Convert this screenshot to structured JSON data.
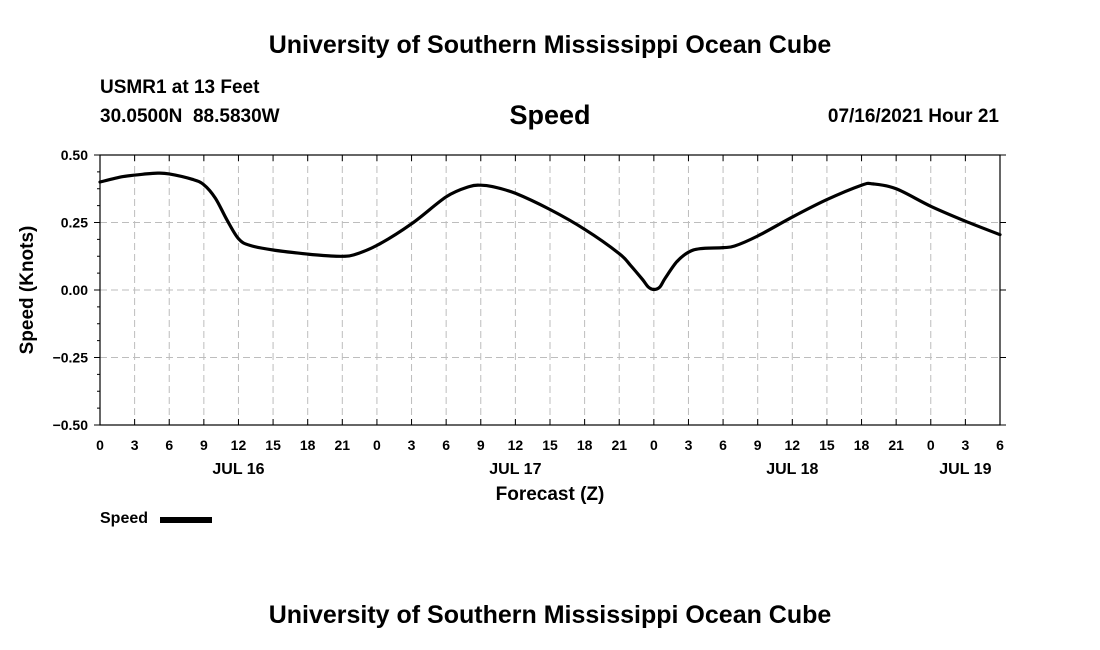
{
  "header": {
    "title": "University of Southern Mississippi Ocean Cube",
    "station": "USMR1 at 13 Feet",
    "coords": "30.0500N  88.5830W",
    "variable": "Speed",
    "timestamp": "07/16/2021 Hour 21"
  },
  "footer": {
    "title": "University of Southern Mississippi Ocean Cube"
  },
  "legend": {
    "label": "Speed"
  },
  "chart_data": {
    "type": "line",
    "title": "Speed",
    "xlabel": "Forecast (Z)",
    "ylabel": "Speed (Knots)",
    "x_unit": "hours since 00Z JUL 16",
    "xlim": [
      0,
      78
    ],
    "ylim": [
      -0.5,
      0.5
    ],
    "grid": true,
    "legend_position": "bottom-left",
    "y_ticks": [
      {
        "value": -0.5,
        "label": "−0.50"
      },
      {
        "value": -0.25,
        "label": "−0.25"
      },
      {
        "value": 0,
        "label": "0.00"
      },
      {
        "value": 0.25,
        "label": "0.25"
      },
      {
        "value": 0.5,
        "label": "0.50"
      }
    ],
    "x_ticks": [
      {
        "value": 0,
        "label": "0"
      },
      {
        "value": 3,
        "label": "3"
      },
      {
        "value": 6,
        "label": "6"
      },
      {
        "value": 9,
        "label": "9"
      },
      {
        "value": 12,
        "label": "12"
      },
      {
        "value": 15,
        "label": "15"
      },
      {
        "value": 18,
        "label": "18"
      },
      {
        "value": 21,
        "label": "21"
      },
      {
        "value": 24,
        "label": "0"
      },
      {
        "value": 27,
        "label": "3"
      },
      {
        "value": 30,
        "label": "6"
      },
      {
        "value": 33,
        "label": "9"
      },
      {
        "value": 36,
        "label": "12"
      },
      {
        "value": 39,
        "label": "15"
      },
      {
        "value": 42,
        "label": "18"
      },
      {
        "value": 45,
        "label": "21"
      },
      {
        "value": 48,
        "label": "0"
      },
      {
        "value": 51,
        "label": "3"
      },
      {
        "value": 54,
        "label": "6"
      },
      {
        "value": 57,
        "label": "9"
      },
      {
        "value": 60,
        "label": "12"
      },
      {
        "value": 63,
        "label": "15"
      },
      {
        "value": 66,
        "label": "18"
      },
      {
        "value": 69,
        "label": "21"
      },
      {
        "value": 72,
        "label": "0"
      },
      {
        "value": 75,
        "label": "3"
      },
      {
        "value": 78,
        "label": "6"
      }
    ],
    "date_labels": [
      {
        "value": 12,
        "label": "JUL 16"
      },
      {
        "value": 36,
        "label": "JUL 17"
      },
      {
        "value": 60,
        "label": "JUL 18"
      },
      {
        "value": 75,
        "label": "JUL 19"
      }
    ],
    "series": [
      {
        "name": "Speed",
        "color": "#000000",
        "x": [
          0,
          2,
          4,
          5,
          6,
          8,
          9,
          10,
          11,
          12,
          13,
          15,
          18,
          20,
          21,
          22,
          24,
          27,
          30,
          32,
          33,
          34,
          36,
          39,
          42,
          45,
          46,
          47,
          47.5,
          48,
          48.5,
          49,
          50,
          51,
          52,
          54,
          55,
          57,
          60,
          63,
          66,
          67,
          69,
          72,
          75,
          78
        ],
        "y": [
          0.4,
          0.42,
          0.43,
          0.433,
          0.43,
          0.41,
          0.39,
          0.34,
          0.26,
          0.19,
          0.165,
          0.148,
          0.133,
          0.126,
          0.125,
          0.13,
          0.165,
          0.245,
          0.345,
          0.383,
          0.388,
          0.383,
          0.358,
          0.298,
          0.225,
          0.135,
          0.09,
          0.04,
          0.012,
          0.002,
          0.01,
          0.045,
          0.105,
          0.14,
          0.153,
          0.157,
          0.163,
          0.2,
          0.27,
          0.335,
          0.388,
          0.393,
          0.375,
          0.31,
          0.255,
          0.205
        ]
      }
    ]
  }
}
